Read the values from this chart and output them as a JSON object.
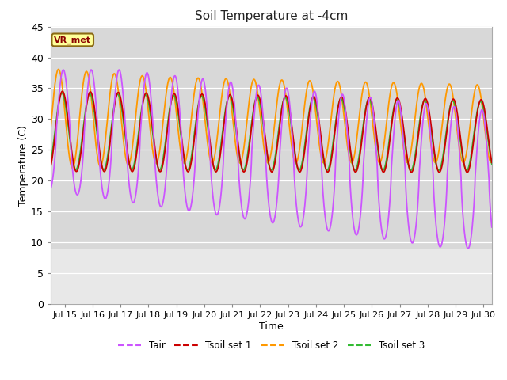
{
  "title": "Soil Temperature at -4cm",
  "xlabel": "Time",
  "ylabel": "Temperature (C)",
  "ylim": [
    0,
    45
  ],
  "xlim_days": [
    14.5,
    30.3
  ],
  "xtick_days": [
    15,
    16,
    17,
    18,
    19,
    20,
    21,
    22,
    23,
    24,
    25,
    26,
    27,
    28,
    29,
    30
  ],
  "xtick_labels": [
    "Jul 15",
    "Jul 16",
    "Jul 17",
    "Jul 18",
    "Jul 19",
    "Jul 20",
    "Jul 21",
    "Jul 22",
    "Jul 23",
    "Jul 24",
    "Jul 25",
    "Jul 26",
    "Jul 27",
    "Jul 28",
    "Jul 29",
    "Jul 30"
  ],
  "ytick_vals": [
    0,
    5,
    10,
    15,
    20,
    25,
    30,
    35,
    40,
    45
  ],
  "colors": {
    "Tair": "#cc55ff",
    "Tsoil1": "#cc0000",
    "Tsoil2": "#ff9900",
    "Tsoil3": "#33bb33"
  },
  "legend_labels": [
    "Tair",
    "Tsoil set 1",
    "Tsoil set 2",
    "Tsoil set 3"
  ],
  "vr_met_label": "VR_met",
  "fig_bg_color": "#ffffff",
  "plot_bg_color": "#e8e8e8",
  "gray_band_bottom": 9.0,
  "gray_band_color": "#d8d8d8",
  "linewidth": 1.3
}
